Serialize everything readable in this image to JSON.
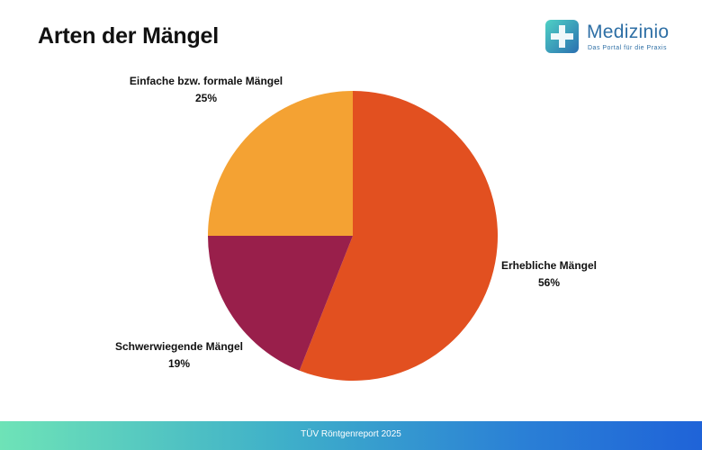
{
  "header": {
    "title": "Arten der Mängel"
  },
  "logo": {
    "name": "Medizinio",
    "tagline": "Das Portal für die Praxis"
  },
  "footer": {
    "source": "TÜV Röntgenreport 2025"
  },
  "colors": {
    "erheblich": "#e25020",
    "schwerwiegend": "#991f4b",
    "einfach": "#f4a233"
  },
  "chart_data": {
    "type": "pie",
    "title": "Arten der Mängel",
    "slices": [
      {
        "label": "Erhebliche Mängel",
        "value": 56,
        "display": "56%",
        "color": "#e25020"
      },
      {
        "label": "Schwerwiegende Mängel",
        "value": 19,
        "display": "19%",
        "color": "#991f4b"
      },
      {
        "label": "Einfache bzw. formale Mängel",
        "value": 25,
        "display": "25%",
        "color": "#f4a233"
      }
    ]
  }
}
